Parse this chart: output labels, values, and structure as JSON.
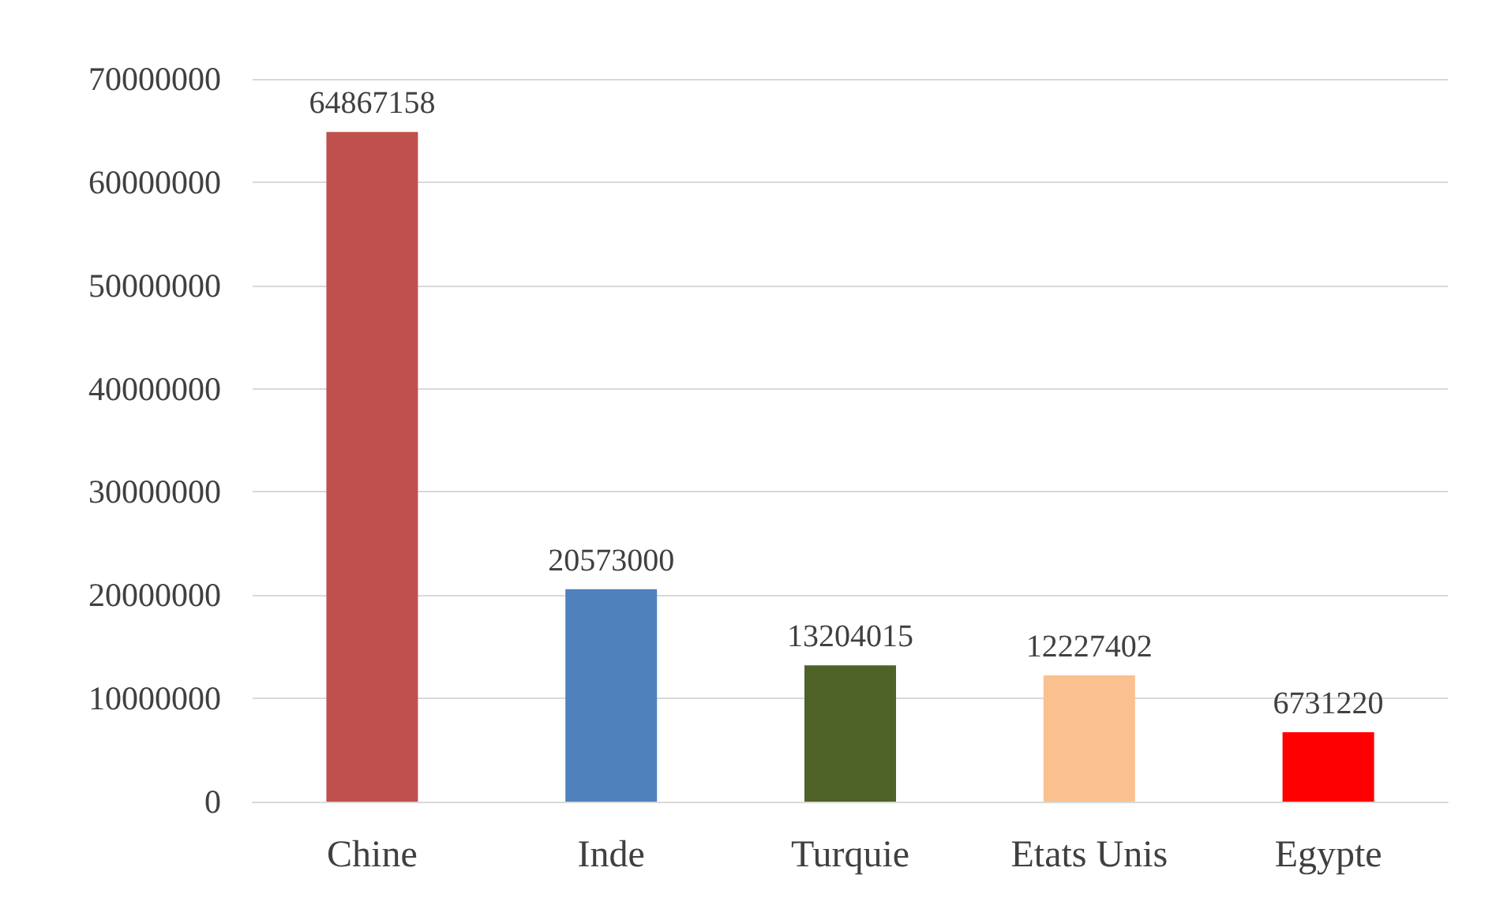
{
  "chart_data": {
    "type": "bar",
    "categories": [
      "Chine",
      "Inde",
      "Turquie",
      "Etats Unis",
      "Egypte"
    ],
    "values": [
      64867158,
      20573000,
      13204015,
      12227402,
      6731220
    ],
    "colors": [
      "#c0504d",
      "#4f81bd",
      "#4f6228",
      "#fac090",
      "#ff0000"
    ],
    "ylim": [
      0,
      70000000
    ],
    "yticks": [
      0,
      10000000,
      20000000,
      30000000,
      40000000,
      50000000,
      60000000,
      70000000
    ],
    "grid": "y",
    "data_labels": true
  }
}
